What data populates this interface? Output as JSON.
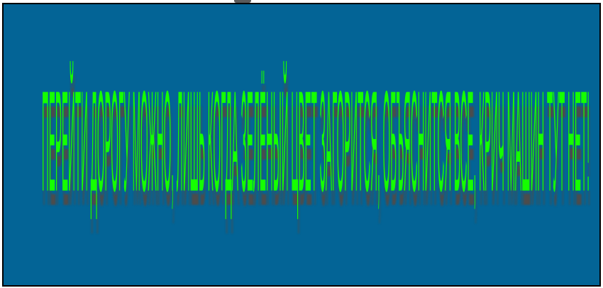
{
  "banner": {
    "text": "ПЕРЕЙТИ ДОРОГУ МОЖНО, ЛИШЬ КОГДА ЗЕЛЁНЫЙ ЦВЕТ ЗАГОРИТСЯ, ОБЪЯСНИТСЯ ВСЕ, КРИЧ МАШИН ТУТ НЕТ!",
    "text_color": "#15ff00",
    "background_color": "#036496",
    "shadow_color": "#4c4c4c"
  }
}
